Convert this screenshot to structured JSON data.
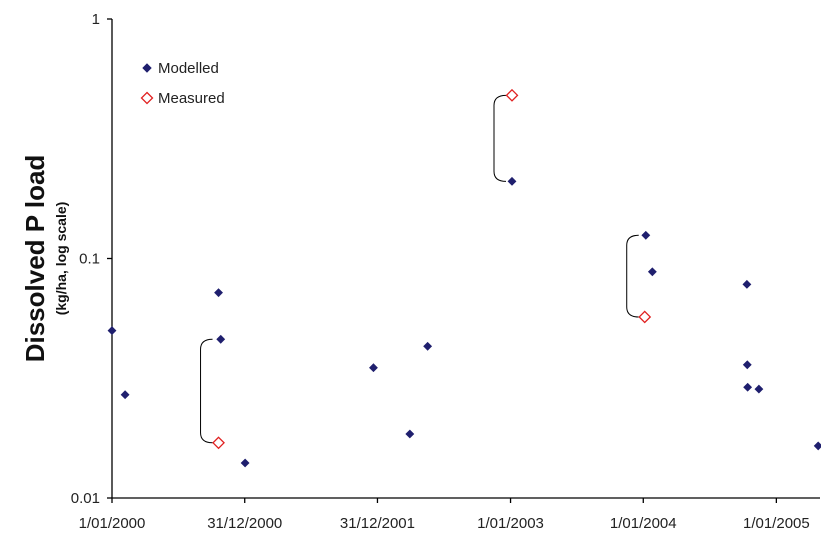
{
  "chart_data": {
    "type": "scatter",
    "xlabel": "",
    "ylabel": "Dissolved P load",
    "ylabel_sub": "(kg/ha, log scale)",
    "y_scale": "log",
    "ylim": [
      0.01,
      1
    ],
    "y_ticks": [
      {
        "value": 1,
        "label": "1"
      },
      {
        "value": 0.1,
        "label": "0.1"
      },
      {
        "value": 0.01,
        "label": "0.01"
      }
    ],
    "xlim": [
      "2000-01-01",
      "2005-05-01"
    ],
    "x_ticks": [
      {
        "value": "2000-01-01",
        "label": "1/01/2000"
      },
      {
        "value": "2000-12-31",
        "label": "31/12/2000"
      },
      {
        "value": "2001-12-31",
        "label": "31/12/2001"
      },
      {
        "value": "2003-01-01",
        "label": "1/01/2003"
      },
      {
        "value": "2004-01-01",
        "label": "1/01/2004"
      },
      {
        "value": "2005-01-01",
        "label": "1/01/2005"
      }
    ],
    "legend": {
      "position": "top-left"
    },
    "series": [
      {
        "name": "Modelled",
        "marker": "filled-diamond",
        "color": "#1f1f6e",
        "points": [
          {
            "x": "2000-01-01",
            "y": 0.05
          },
          {
            "x": "2000-02-06",
            "y": 0.027
          },
          {
            "x": "2000-10-20",
            "y": 0.072
          },
          {
            "x": "2000-10-26",
            "y": 0.046
          },
          {
            "x": "2001-01-01",
            "y": 0.014
          },
          {
            "x": "2001-12-20",
            "y": 0.035
          },
          {
            "x": "2002-03-30",
            "y": 0.0185
          },
          {
            "x": "2002-05-18",
            "y": 0.043
          },
          {
            "x": "2003-01-05",
            "y": 0.21
          },
          {
            "x": "2004-01-08",
            "y": 0.125
          },
          {
            "x": "2004-01-26",
            "y": 0.088
          },
          {
            "x": "2004-10-12",
            "y": 0.078
          },
          {
            "x": "2004-10-13",
            "y": 0.036
          },
          {
            "x": "2004-10-14",
            "y": 0.029
          },
          {
            "x": "2004-11-14",
            "y": 0.0285
          },
          {
            "x": "2005-04-26",
            "y": 0.0165
          }
        ]
      },
      {
        "name": "Measured",
        "marker": "open-diamond",
        "color": "#e02020",
        "points": [
          {
            "x": "2000-10-20",
            "y": 0.017
          },
          {
            "x": "2003-01-05",
            "y": 0.48
          },
          {
            "x": "2004-01-05",
            "y": 0.057
          }
        ]
      }
    ],
    "brackets": [
      {
        "x": "2000-10-20",
        "y_top": 0.046,
        "y_bottom": 0.017
      },
      {
        "x": "2003-01-05",
        "y_top": 0.48,
        "y_bottom": 0.21
      },
      {
        "x": "2004-01-05",
        "y_top": 0.125,
        "y_bottom": 0.057
      }
    ]
  }
}
